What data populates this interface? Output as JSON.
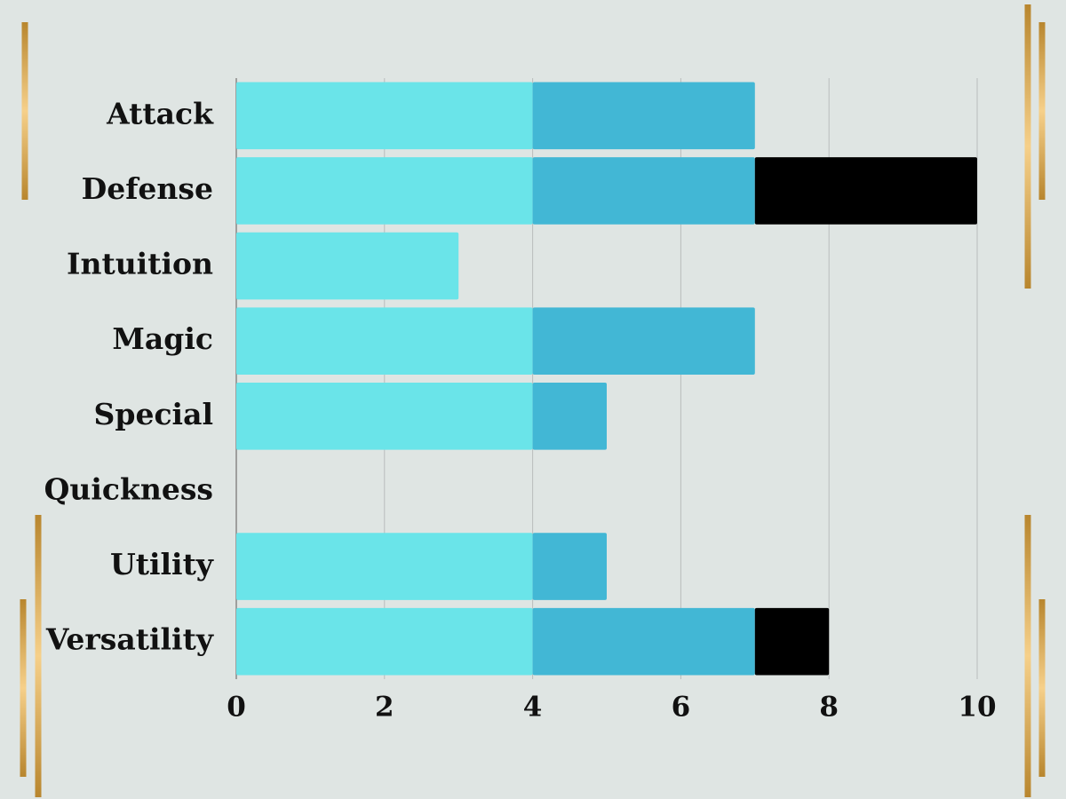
{
  "chart_data": {
    "type": "bar",
    "stacked": true,
    "grid": true,
    "categories": [
      "Attack",
      "Defense",
      "Intuition",
      "Magic",
      "Special",
      "Quickness",
      "Utility",
      "Versatility"
    ],
    "series": [
      {
        "color": "#6ae4e9",
        "values": [
          4,
          4,
          3,
          4,
          4,
          0,
          4,
          4
        ]
      },
      {
        "color": "#42b7d5",
        "values": [
          3,
          3,
          0,
          3,
          1,
          0,
          1,
          3
        ]
      },
      {
        "color": "#000000",
        "values": [
          0,
          3,
          0,
          0,
          0,
          0,
          0,
          1
        ]
      }
    ],
    "xlim": [
      0,
      10
    ],
    "xticks": [
      0,
      2,
      4,
      6,
      8,
      10
    ]
  }
}
